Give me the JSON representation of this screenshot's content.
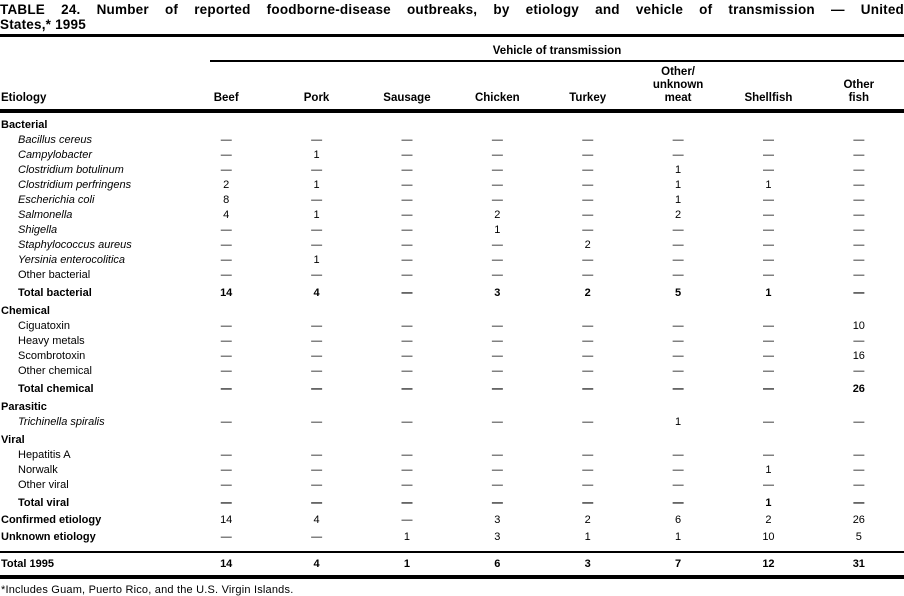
{
  "title": {
    "line1": "TABLE 24. Number of reported foodborne-disease outbreaks, by etiology and vehicle of transmission — United",
    "line2": "States,* 1995"
  },
  "header": {
    "spanner": "Vehicle of transmission",
    "etiology_label": "Etiology",
    "columns": [
      "Beef",
      "Pork",
      "Sausage",
      "Chicken",
      "Turkey",
      "Other/\nunknown\nmeat",
      "Shellfish",
      "Other\nfish"
    ]
  },
  "table": {
    "rows": [
      {
        "type": "section",
        "label": "Bacterial"
      },
      {
        "type": "species",
        "label": "Bacillus cereus",
        "values": [
          "—",
          "—",
          "—",
          "—",
          "—",
          "—",
          "—",
          "—"
        ]
      },
      {
        "type": "species",
        "label": "Campylobacter",
        "values": [
          "—",
          "1",
          "—",
          "—",
          "—",
          "—",
          "—",
          "—"
        ]
      },
      {
        "type": "species",
        "label": "Clostridium botulinum",
        "values": [
          "—",
          "—",
          "—",
          "—",
          "—",
          "1",
          "—",
          "—"
        ]
      },
      {
        "type": "species",
        "label": "Clostridium perfringens",
        "values": [
          "2",
          "1",
          "—",
          "—",
          "—",
          "1",
          "1",
          "—"
        ]
      },
      {
        "type": "species",
        "label": "Escherichia coli",
        "values": [
          "8",
          "—",
          "—",
          "—",
          "—",
          "1",
          "—",
          "—"
        ]
      },
      {
        "type": "species",
        "label": "Salmonella",
        "values": [
          "4",
          "1",
          "—",
          "2",
          "—",
          "2",
          "—",
          "—"
        ]
      },
      {
        "type": "species",
        "label": "Shigella",
        "values": [
          "—",
          "—",
          "—",
          "1",
          "—",
          "—",
          "—",
          "—"
        ]
      },
      {
        "type": "species",
        "label": "Staphylococcus aureus",
        "values": [
          "—",
          "—",
          "—",
          "—",
          "2",
          "—",
          "—",
          "—"
        ]
      },
      {
        "type": "species",
        "label": "Yersinia enterocolitica",
        "values": [
          "—",
          "1",
          "—",
          "—",
          "—",
          "—",
          "—",
          "—"
        ]
      },
      {
        "type": "item",
        "label": "Other bacterial",
        "values": [
          "—",
          "—",
          "—",
          "—",
          "—",
          "—",
          "—",
          "—"
        ]
      },
      {
        "type": "total",
        "label": "Total bacterial",
        "values": [
          "14",
          "4",
          "—",
          "3",
          "2",
          "5",
          "1",
          "—"
        ]
      },
      {
        "type": "section",
        "label": "Chemical"
      },
      {
        "type": "item",
        "label": "Ciguatoxin",
        "values": [
          "—",
          "—",
          "—",
          "—",
          "—",
          "—",
          "—",
          "10"
        ]
      },
      {
        "type": "item",
        "label": "Heavy metals",
        "values": [
          "—",
          "—",
          "—",
          "—",
          "—",
          "—",
          "—",
          "—"
        ]
      },
      {
        "type": "item",
        "label": "Scombrotoxin",
        "values": [
          "—",
          "—",
          "—",
          "—",
          "—",
          "—",
          "—",
          "16"
        ]
      },
      {
        "type": "item",
        "label": "Other chemical",
        "values": [
          "—",
          "—",
          "—",
          "—",
          "—",
          "—",
          "—",
          "—"
        ]
      },
      {
        "type": "total",
        "label": "Total chemical",
        "values": [
          "—",
          "—",
          "—",
          "—",
          "—",
          "—",
          "—",
          "26"
        ]
      },
      {
        "type": "section",
        "label": "Parasitic"
      },
      {
        "type": "species",
        "label": "Trichinella spiralis",
        "values": [
          "—",
          "—",
          "—",
          "—",
          "—",
          "1",
          "—",
          "—"
        ]
      },
      {
        "type": "section",
        "label": "Viral"
      },
      {
        "type": "item",
        "label": "Hepatitis A",
        "values": [
          "—",
          "—",
          "—",
          "—",
          "—",
          "—",
          "—",
          "—"
        ]
      },
      {
        "type": "item",
        "label": "Norwalk",
        "values": [
          "—",
          "—",
          "—",
          "—",
          "—",
          "—",
          "1",
          "—"
        ]
      },
      {
        "type": "item",
        "label": "Other viral",
        "values": [
          "—",
          "—",
          "—",
          "—",
          "—",
          "—",
          "—",
          "—"
        ]
      },
      {
        "type": "total",
        "label": "Total viral",
        "values": [
          "—",
          "—",
          "—",
          "—",
          "—",
          "—",
          "1",
          "—"
        ]
      },
      {
        "type": "summary",
        "label": "Confirmed etiology",
        "values": [
          "14",
          "4",
          "—",
          "3",
          "2",
          "6",
          "2",
          "26"
        ]
      },
      {
        "type": "summary",
        "label": "Unknown etiology",
        "values": [
          "—",
          "—",
          "1",
          "3",
          "1",
          "1",
          "10",
          "5"
        ]
      },
      {
        "type": "grand",
        "label": "Total 1995",
        "values": [
          "14",
          "4",
          "1",
          "6",
          "3",
          "7",
          "12",
          "31"
        ]
      }
    ]
  },
  "footnote": "*Includes Guam, Puerto Rico, and the U.S. Virgin Islands.",
  "colors": {
    "text": "#000000",
    "background": "#ffffff"
  }
}
